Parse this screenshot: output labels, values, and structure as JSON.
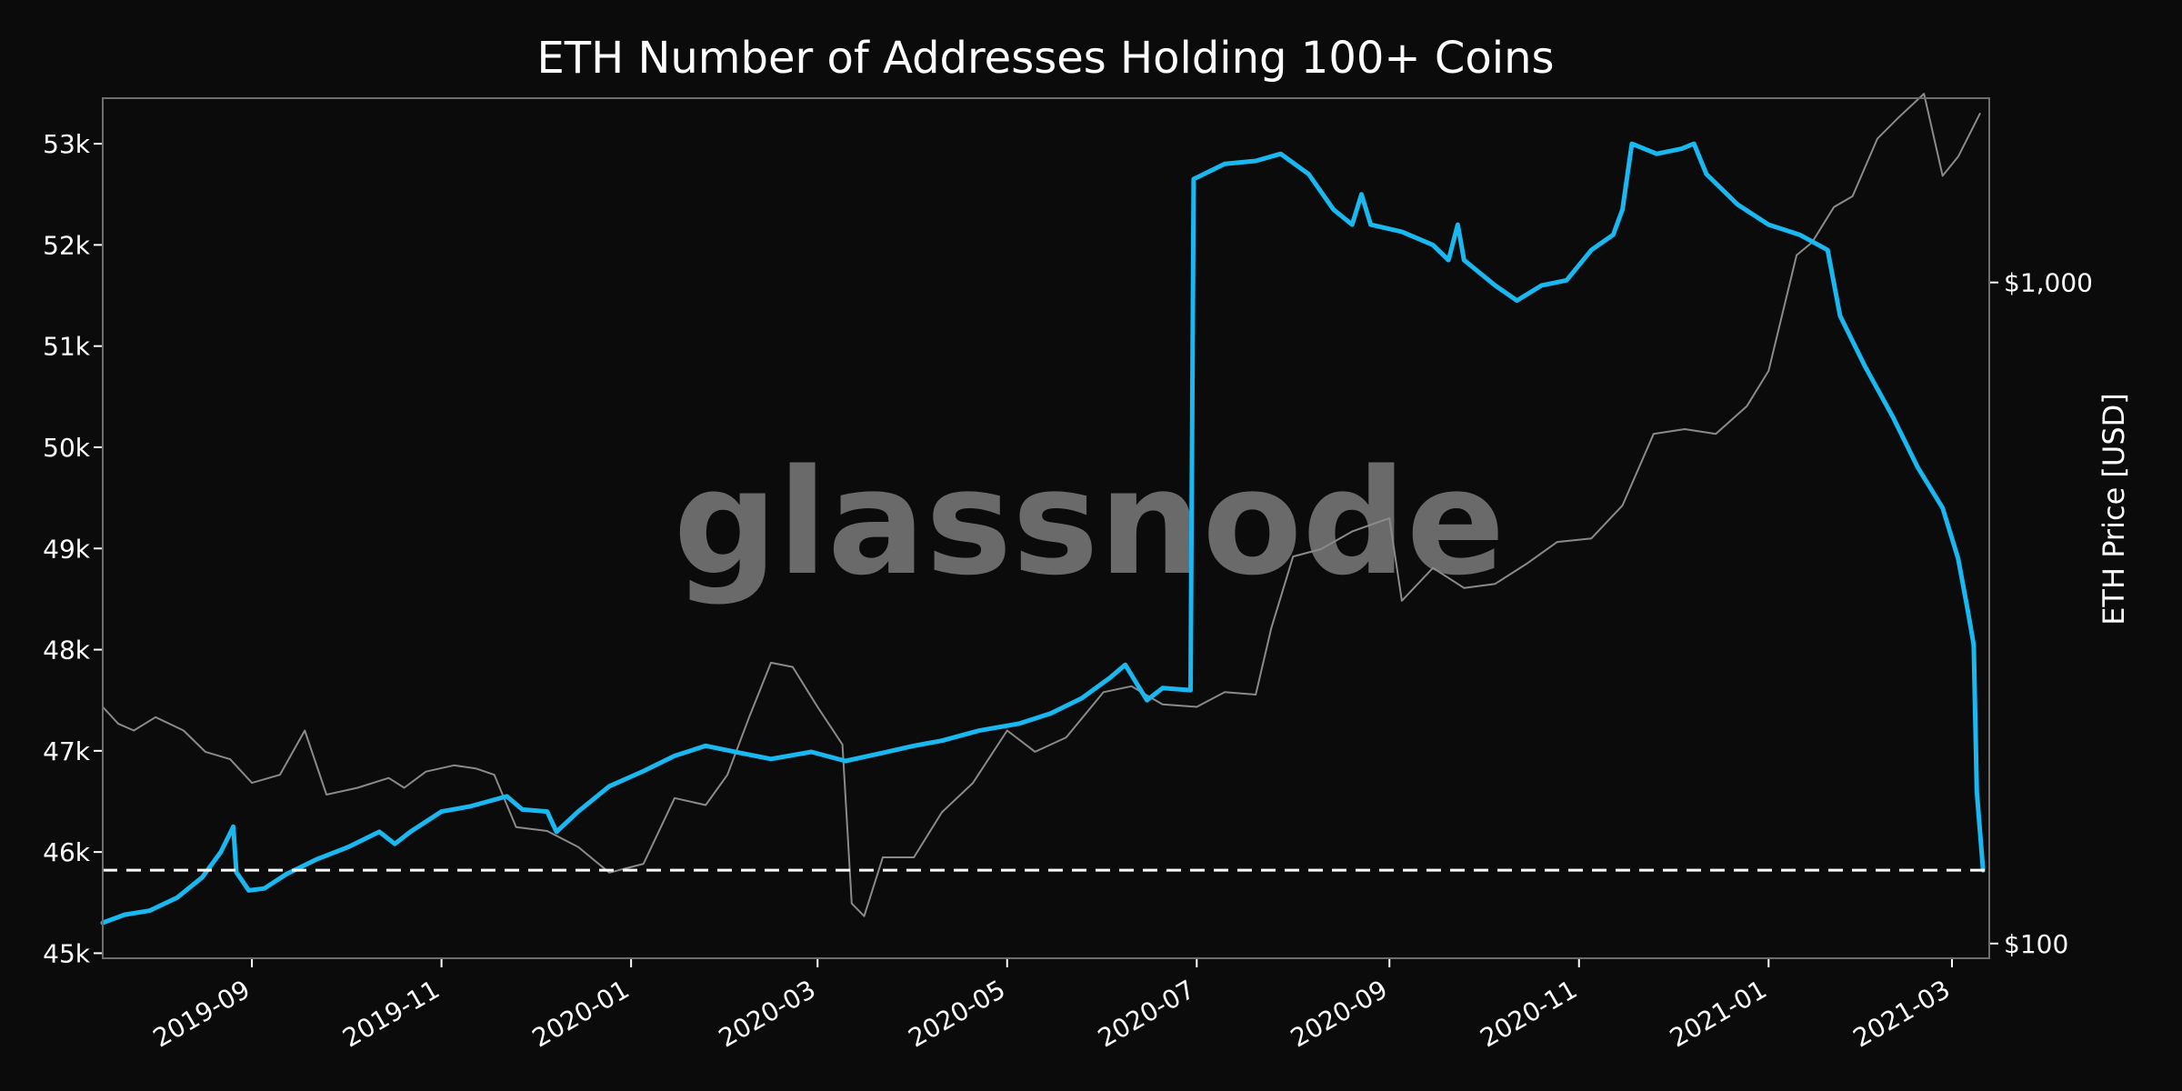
{
  "chart_data": {
    "type": "line",
    "title": "ETH Number of Addresses Holding 100+ Coins",
    "xlabel": "",
    "ylabel": "",
    "y2label": "ETH Price [USD]",
    "watermark": "glassnode",
    "x_range": [
      "2019-07-15",
      "2021-03-13"
    ],
    "ylim": [
      44950,
      53450
    ],
    "y_ticks": [
      45000,
      46000,
      47000,
      48000,
      49000,
      50000,
      51000,
      52000,
      53000
    ],
    "y_tick_labels": [
      "45k",
      "46k",
      "47k",
      "48k",
      "49k",
      "50k",
      "51k",
      "52k",
      "53k"
    ],
    "y2_scale": "log",
    "y2lim": [
      95,
      1900
    ],
    "y2_ticks": [
      100,
      1000
    ],
    "y2_tick_labels": [
      "$100",
      "$1,000"
    ],
    "x_ticks": [
      "2019-09-01",
      "2019-11-01",
      "2020-01-01",
      "2020-03-01",
      "2020-05-01",
      "2020-07-01",
      "2020-09-01",
      "2020-11-01",
      "2021-01-01",
      "2021-03-01"
    ],
    "x_tick_labels": [
      "2019-09",
      "2019-11",
      "2020-01",
      "2020-03",
      "2020-05",
      "2020-07",
      "2020-09",
      "2020-11",
      "2021-01",
      "2021-03"
    ],
    "grid": false,
    "reference_line": {
      "y": 45820,
      "style": "dashed",
      "color": "#ffffff"
    },
    "series": [
      {
        "axis": "left",
        "color": "#1ab8f0",
        "points": [
          [
            "2019-07-15",
            45300
          ],
          [
            "2019-07-22",
            45380
          ],
          [
            "2019-07-30",
            45420
          ],
          [
            "2019-08-08",
            45550
          ],
          [
            "2019-08-16",
            45750
          ],
          [
            "2019-08-22",
            46000
          ],
          [
            "2019-08-26",
            46250
          ],
          [
            "2019-08-27",
            45800
          ],
          [
            "2019-08-31",
            45620
          ],
          [
            "2019-09-05",
            45640
          ],
          [
            "2019-09-12",
            45780
          ],
          [
            "2019-09-22",
            45930
          ],
          [
            "2019-10-02",
            46050
          ],
          [
            "2019-10-12",
            46200
          ],
          [
            "2019-10-17",
            46080
          ],
          [
            "2019-10-22",
            46200
          ],
          [
            "2019-11-01",
            46400
          ],
          [
            "2019-11-10",
            46450
          ],
          [
            "2019-11-22",
            46550
          ],
          [
            "2019-11-27",
            46420
          ],
          [
            "2019-12-05",
            46400
          ],
          [
            "2019-12-08",
            46200
          ],
          [
            "2019-12-15",
            46400
          ],
          [
            "2019-12-25",
            46650
          ],
          [
            "2020-01-05",
            46800
          ],
          [
            "2020-01-15",
            46950
          ],
          [
            "2020-01-25",
            47050
          ],
          [
            "2020-02-05",
            46980
          ],
          [
            "2020-02-15",
            46920
          ],
          [
            "2020-02-28",
            46990
          ],
          [
            "2020-03-10",
            46900
          ],
          [
            "2020-03-22",
            46980
          ],
          [
            "2020-04-01",
            47050
          ],
          [
            "2020-04-10",
            47100
          ],
          [
            "2020-04-22",
            47200
          ],
          [
            "2020-05-05",
            47270
          ],
          [
            "2020-05-15",
            47370
          ],
          [
            "2020-05-25",
            47520
          ],
          [
            "2020-06-03",
            47720
          ],
          [
            "2020-06-08",
            47850
          ],
          [
            "2020-06-12",
            47650
          ],
          [
            "2020-06-15",
            47500
          ],
          [
            "2020-06-20",
            47620
          ],
          [
            "2020-06-29",
            47600
          ],
          [
            "2020-06-30",
            52650
          ],
          [
            "2020-07-10",
            52800
          ],
          [
            "2020-07-20",
            52830
          ],
          [
            "2020-07-28",
            52900
          ],
          [
            "2020-08-06",
            52700
          ],
          [
            "2020-08-14",
            52350
          ],
          [
            "2020-08-20",
            52200
          ],
          [
            "2020-08-23",
            52500
          ],
          [
            "2020-08-26",
            52200
          ],
          [
            "2020-09-05",
            52130
          ],
          [
            "2020-09-15",
            52000
          ],
          [
            "2020-09-20",
            51850
          ],
          [
            "2020-09-23",
            52200
          ],
          [
            "2020-09-25",
            51850
          ],
          [
            "2020-10-05",
            51600
          ],
          [
            "2020-10-12",
            51450
          ],
          [
            "2020-10-20",
            51600
          ],
          [
            "2020-10-28",
            51650
          ],
          [
            "2020-11-05",
            51950
          ],
          [
            "2020-11-12",
            52100
          ],
          [
            "2020-11-15",
            52350
          ],
          [
            "2020-11-18",
            53000
          ],
          [
            "2020-11-26",
            52900
          ],
          [
            "2020-12-04",
            52950
          ],
          [
            "2020-12-08",
            53000
          ],
          [
            "2020-12-12",
            52700
          ],
          [
            "2020-12-22",
            52400
          ],
          [
            "2021-01-01",
            52200
          ],
          [
            "2021-01-11",
            52100
          ],
          [
            "2021-01-20",
            51950
          ],
          [
            "2021-01-24",
            51300
          ],
          [
            "2021-02-01",
            50800
          ],
          [
            "2021-02-10",
            50300
          ],
          [
            "2021-02-18",
            49800
          ],
          [
            "2021-02-26",
            49400
          ],
          [
            "2021-03-03",
            48900
          ],
          [
            "2021-03-06",
            48400
          ],
          [
            "2021-03-08",
            48050
          ],
          [
            "2021-03-09",
            46600
          ],
          [
            "2021-03-11",
            45820
          ]
        ]
      },
      {
        "axis": "right",
        "color": "#8a8a8a",
        "points": [
          [
            "2019-07-15",
            228
          ],
          [
            "2019-07-20",
            215
          ],
          [
            "2019-07-25",
            210
          ],
          [
            "2019-08-01",
            220
          ],
          [
            "2019-08-10",
            210
          ],
          [
            "2019-08-17",
            195
          ],
          [
            "2019-08-25",
            190
          ],
          [
            "2019-09-01",
            175
          ],
          [
            "2019-09-10",
            180
          ],
          [
            "2019-09-18",
            210
          ],
          [
            "2019-09-25",
            168
          ],
          [
            "2019-10-05",
            172
          ],
          [
            "2019-10-15",
            178
          ],
          [
            "2019-10-20",
            172
          ],
          [
            "2019-10-27",
            182
          ],
          [
            "2019-11-05",
            186
          ],
          [
            "2019-11-12",
            184
          ],
          [
            "2019-11-18",
            180
          ],
          [
            "2019-11-25",
            150
          ],
          [
            "2019-12-05",
            148
          ],
          [
            "2019-12-15",
            140
          ],
          [
            "2019-12-25",
            128
          ],
          [
            "2020-01-05",
            132
          ],
          [
            "2020-01-15",
            166
          ],
          [
            "2020-01-25",
            162
          ],
          [
            "2020-02-01",
            180
          ],
          [
            "2020-02-08",
            220
          ],
          [
            "2020-02-15",
            266
          ],
          [
            "2020-02-22",
            262
          ],
          [
            "2020-03-01",
            228
          ],
          [
            "2020-03-09",
            200
          ],
          [
            "2020-03-12",
            115
          ],
          [
            "2020-03-16",
            110
          ],
          [
            "2020-03-22",
            135
          ],
          [
            "2020-04-01",
            135
          ],
          [
            "2020-04-10",
            158
          ],
          [
            "2020-04-20",
            175
          ],
          [
            "2020-05-01",
            210
          ],
          [
            "2020-05-10",
            195
          ],
          [
            "2020-05-20",
            205
          ],
          [
            "2020-06-01",
            240
          ],
          [
            "2020-06-10",
            245
          ],
          [
            "2020-06-20",
            230
          ],
          [
            "2020-07-01",
            228
          ],
          [
            "2020-07-10",
            240
          ],
          [
            "2020-07-20",
            238
          ],
          [
            "2020-07-25",
            300
          ],
          [
            "2020-08-01",
            385
          ],
          [
            "2020-08-10",
            395
          ],
          [
            "2020-08-20",
            420
          ],
          [
            "2020-09-01",
            440
          ],
          [
            "2020-09-05",
            330
          ],
          [
            "2020-09-15",
            370
          ],
          [
            "2020-09-25",
            345
          ],
          [
            "2020-10-05",
            350
          ],
          [
            "2020-10-15",
            375
          ],
          [
            "2020-10-25",
            405
          ],
          [
            "2020-11-05",
            410
          ],
          [
            "2020-11-15",
            460
          ],
          [
            "2020-11-25",
            590
          ],
          [
            "2020-12-05",
            600
          ],
          [
            "2020-12-15",
            590
          ],
          [
            "2020-12-25",
            650
          ],
          [
            "2021-01-01",
            735
          ],
          [
            "2021-01-10",
            1100
          ],
          [
            "2021-01-15",
            1150
          ],
          [
            "2021-01-22",
            1300
          ],
          [
            "2021-01-28",
            1350
          ],
          [
            "2021-02-05",
            1650
          ],
          [
            "2021-02-12",
            1780
          ],
          [
            "2021-02-20",
            1930
          ],
          [
            "2021-02-26",
            1450
          ],
          [
            "2021-03-03",
            1550
          ],
          [
            "2021-03-10",
            1800
          ]
        ]
      }
    ]
  }
}
